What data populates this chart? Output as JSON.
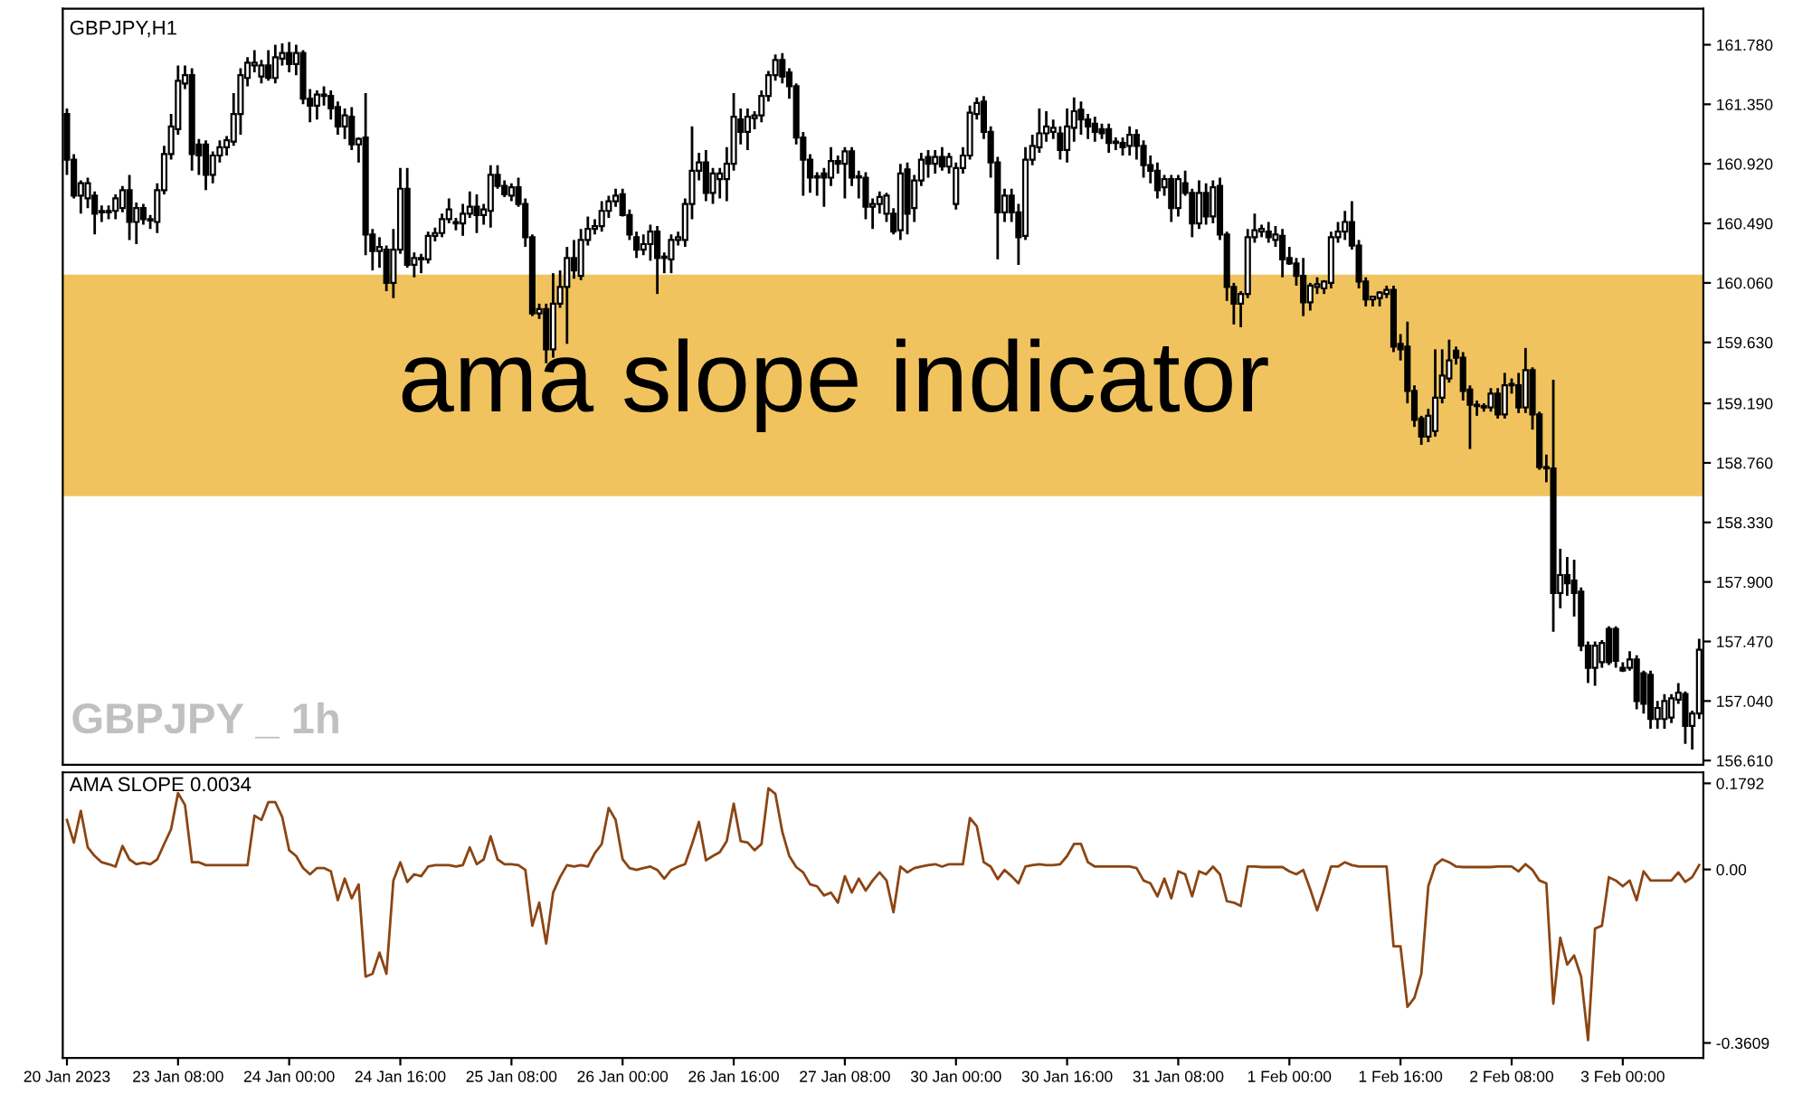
{
  "chart_data": [
    {
      "type": "candlestick",
      "title": "GBPJPY,H1",
      "color": "#000000",
      "tick_labels": "y",
      "annotations": [
        "GBPJPY _ 1h"
      ],
      "bands": [
        {
          "axis": "y",
          "from": 158.52,
          "to": 160.12,
          "label": "ama slope indicator",
          "color": "#f0c35e"
        }
      ],
      "ylim": [
        156.58,
        162.04
      ],
      "yticks": [
        {
          "value": 161.78,
          "label": "161.780"
        },
        {
          "value": 161.35,
          "label": "161.350"
        },
        {
          "value": 160.92,
          "label": "160.920"
        },
        {
          "value": 160.49,
          "label": "160.490"
        },
        {
          "value": 160.06,
          "label": "160.060"
        },
        {
          "value": 159.63,
          "label": "159.630"
        },
        {
          "value": 159.19,
          "label": "159.190"
        },
        {
          "value": 158.76,
          "label": "158.760"
        },
        {
          "value": 158.33,
          "label": "158.330"
        },
        {
          "value": 157.9,
          "label": "157.900"
        },
        {
          "value": 157.47,
          "label": "157.470"
        },
        {
          "value": 157.04,
          "label": "157.040"
        },
        {
          "value": 156.61,
          "label": "156.610"
        }
      ],
      "ohlc": [
        [
          161.28,
          161.32,
          160.84,
          160.95
        ],
        [
          160.95,
          160.99,
          160.67,
          160.69
        ],
        [
          160.69,
          160.8,
          160.56,
          160.78
        ],
        [
          160.67,
          160.82,
          160.6,
          160.78
        ],
        [
          160.69,
          160.72,
          160.41,
          160.56
        ],
        [
          160.57,
          160.62,
          160.5,
          160.58
        ],
        [
          160.58,
          160.62,
          160.52,
          160.57
        ],
        [
          160.58,
          160.7,
          160.52,
          160.67
        ],
        [
          160.6,
          160.76,
          160.57,
          160.73
        ],
        [
          160.73,
          160.84,
          160.37,
          160.5
        ],
        [
          160.5,
          160.64,
          160.34,
          160.6
        ],
        [
          160.6,
          160.63,
          160.48,
          160.52
        ],
        [
          160.52,
          160.55,
          160.45,
          160.51
        ],
        [
          160.5,
          160.78,
          160.42,
          160.73
        ],
        [
          160.73,
          161.05,
          160.7,
          160.99
        ],
        [
          160.99,
          161.28,
          160.95,
          161.19
        ],
        [
          161.17,
          161.63,
          161.13,
          161.52
        ],
        [
          161.5,
          161.63,
          161.46,
          161.56
        ],
        [
          161.56,
          161.61,
          160.87,
          160.99
        ],
        [
          161.06,
          161.1,
          160.84,
          160.98
        ],
        [
          161.06,
          161.09,
          160.73,
          160.84
        ],
        [
          160.84,
          161.01,
          160.78,
          160.98
        ],
        [
          160.98,
          161.09,
          160.93,
          161.04
        ],
        [
          161.04,
          161.12,
          160.98,
          161.09
        ],
        [
          161.08,
          161.43,
          161.05,
          161.28
        ],
        [
          161.28,
          161.61,
          161.13,
          161.56
        ],
        [
          161.54,
          161.69,
          161.48,
          161.65
        ],
        [
          161.63,
          161.74,
          161.58,
          161.65
        ],
        [
          161.55,
          161.67,
          161.5,
          161.63
        ],
        [
          161.63,
          161.74,
          161.52,
          161.54
        ],
        [
          161.54,
          161.78,
          161.5,
          161.69
        ],
        [
          161.68,
          161.79,
          161.63,
          161.72
        ],
        [
          161.72,
          161.8,
          161.58,
          161.64
        ],
        [
          161.64,
          161.78,
          161.56,
          161.72
        ],
        [
          161.72,
          161.74,
          161.35,
          161.39
        ],
        [
          161.39,
          161.46,
          161.22,
          161.34
        ],
        [
          161.34,
          161.45,
          161.24,
          161.42
        ],
        [
          161.42,
          161.48,
          161.34,
          161.41
        ],
        [
          161.41,
          161.45,
          161.24,
          161.32
        ],
        [
          161.33,
          161.37,
          161.13,
          161.19
        ],
        [
          161.19,
          161.32,
          161.1,
          161.27
        ],
        [
          161.26,
          161.33,
          161.02,
          161.06
        ],
        [
          161.06,
          161.11,
          160.93,
          161.1
        ],
        [
          161.11,
          161.43,
          160.26,
          160.41
        ],
        [
          160.41,
          160.45,
          160.15,
          160.29
        ],
        [
          160.29,
          160.39,
          160.17,
          160.32
        ],
        [
          160.3,
          160.33,
          160.0,
          160.06
        ],
        [
          160.06,
          160.45,
          159.95,
          160.3
        ],
        [
          160.3,
          160.89,
          160.27,
          160.74
        ],
        [
          160.74,
          160.89,
          160.17,
          160.19
        ],
        [
          160.19,
          160.28,
          160.1,
          160.24
        ],
        [
          160.24,
          160.27,
          160.13,
          160.23
        ],
        [
          160.23,
          160.43,
          160.2,
          160.4
        ],
        [
          160.4,
          160.46,
          160.36,
          160.42
        ],
        [
          160.42,
          160.56,
          160.39,
          160.52
        ],
        [
          160.52,
          160.67,
          160.49,
          160.59
        ],
        [
          160.5,
          160.53,
          160.44,
          160.49
        ],
        [
          160.49,
          160.63,
          160.4,
          160.56
        ],
        [
          160.56,
          160.72,
          160.53,
          160.61
        ],
        [
          160.61,
          160.7,
          160.42,
          160.55
        ],
        [
          160.55,
          160.63,
          160.48,
          160.59
        ],
        [
          160.58,
          160.91,
          160.46,
          160.84
        ],
        [
          160.84,
          160.91,
          160.74,
          160.76
        ],
        [
          160.76,
          160.8,
          160.68,
          160.7
        ],
        [
          160.69,
          160.78,
          160.65,
          160.75
        ],
        [
          160.75,
          160.82,
          160.61,
          160.63
        ],
        [
          160.63,
          160.67,
          160.32,
          160.39
        ],
        [
          160.39,
          160.41,
          159.82,
          159.84
        ],
        [
          159.84,
          159.91,
          159.8,
          159.87
        ],
        [
          159.87,
          159.91,
          159.48,
          159.58
        ],
        [
          159.58,
          160.13,
          159.52,
          159.91
        ],
        [
          159.91,
          160.15,
          159.88,
          160.03
        ],
        [
          160.03,
          160.32,
          159.62,
          160.24
        ],
        [
          160.24,
          160.37,
          160.09,
          160.15
        ],
        [
          160.11,
          160.45,
          160.08,
          160.37
        ],
        [
          160.37,
          160.54,
          160.33,
          160.45
        ],
        [
          160.45,
          160.52,
          160.41,
          160.47
        ],
        [
          160.47,
          160.65,
          160.43,
          160.58
        ],
        [
          160.58,
          160.69,
          160.53,
          160.65
        ],
        [
          160.65,
          160.74,
          160.61,
          160.69
        ],
        [
          160.7,
          160.74,
          160.54,
          160.55
        ],
        [
          160.55,
          160.59,
          160.37,
          160.41
        ],
        [
          160.39,
          160.43,
          160.24,
          160.3
        ],
        [
          160.3,
          160.41,
          160.26,
          160.34
        ],
        [
          160.34,
          160.48,
          160.22,
          160.43
        ],
        [
          160.43,
          160.47,
          159.98,
          160.24
        ],
        [
          160.24,
          160.28,
          160.13,
          160.25
        ],
        [
          160.23,
          160.41,
          160.13,
          160.37
        ],
        [
          160.37,
          160.43,
          160.33,
          160.39
        ],
        [
          160.37,
          160.67,
          160.32,
          160.63
        ],
        [
          160.63,
          161.19,
          160.52,
          160.87
        ],
        [
          160.87,
          161.0,
          160.8,
          160.93
        ],
        [
          160.93,
          161.02,
          160.65,
          160.71
        ],
        [
          160.71,
          160.89,
          160.63,
          160.85
        ],
        [
          160.81,
          160.89,
          160.67,
          160.85
        ],
        [
          160.81,
          161.04,
          160.65,
          160.92
        ],
        [
          160.92,
          161.43,
          160.87,
          161.26
        ],
        [
          161.24,
          161.32,
          161.06,
          161.15
        ],
        [
          161.15,
          161.32,
          161.02,
          161.26
        ],
        [
          161.25,
          161.3,
          161.17,
          161.27
        ],
        [
          161.27,
          161.45,
          161.22,
          161.41
        ],
        [
          161.41,
          161.59,
          161.37,
          161.56
        ],
        [
          161.56,
          161.71,
          161.52,
          161.67
        ],
        [
          161.67,
          161.72,
          161.5,
          161.55
        ],
        [
          161.58,
          161.61,
          161.39,
          161.48
        ],
        [
          161.48,
          161.5,
          161.06,
          161.11
        ],
        [
          161.11,
          161.15,
          160.69,
          160.95
        ],
        [
          160.95,
          160.99,
          160.71,
          160.82
        ],
        [
          160.82,
          160.86,
          160.69,
          160.83
        ],
        [
          160.85,
          160.89,
          160.61,
          160.82
        ],
        [
          160.82,
          161.04,
          160.76,
          160.94
        ],
        [
          160.94,
          160.98,
          160.85,
          160.92
        ],
        [
          160.92,
          161.04,
          160.67,
          161.01
        ],
        [
          161.01,
          161.04,
          160.76,
          160.82
        ],
        [
          160.82,
          160.87,
          160.67,
          160.83
        ],
        [
          160.82,
          160.86,
          160.52,
          160.61
        ],
        [
          160.61,
          160.67,
          160.45,
          160.63
        ],
        [
          160.63,
          160.72,
          160.56,
          160.68
        ],
        [
          160.56,
          160.71,
          160.5,
          160.69
        ],
        [
          160.56,
          160.6,
          160.41,
          160.43
        ],
        [
          160.44,
          160.92,
          160.37,
          160.85
        ],
        [
          160.88,
          160.93,
          160.41,
          160.56
        ],
        [
          160.6,
          160.84,
          160.5,
          160.8
        ],
        [
          160.8,
          161.0,
          160.76,
          160.95
        ],
        [
          160.97,
          161.02,
          160.82,
          160.92
        ],
        [
          160.92,
          161.02,
          160.85,
          160.97
        ],
        [
          160.97,
          161.04,
          160.87,
          160.9
        ],
        [
          160.9,
          161.0,
          160.85,
          160.97
        ],
        [
          160.63,
          160.93,
          160.59,
          160.89
        ],
        [
          160.89,
          161.04,
          160.85,
          160.98
        ],
        [
          160.98,
          161.34,
          160.95,
          161.29
        ],
        [
          161.28,
          161.4,
          161.24,
          161.36
        ],
        [
          161.37,
          161.41,
          161.1,
          161.15
        ],
        [
          161.15,
          161.19,
          160.82,
          160.93
        ],
        [
          160.93,
          160.97,
          160.23,
          160.57
        ],
        [
          160.57,
          160.74,
          160.5,
          160.69
        ],
        [
          160.69,
          160.74,
          160.5,
          160.57
        ],
        [
          160.57,
          160.63,
          160.19,
          160.39
        ],
        [
          160.4,
          161.04,
          160.37,
          160.95
        ],
        [
          160.95,
          161.13,
          160.91,
          161.05
        ],
        [
          161.04,
          161.32,
          161.0,
          161.14
        ],
        [
          161.14,
          161.3,
          161.08,
          161.19
        ],
        [
          161.15,
          161.24,
          161.1,
          161.18
        ],
        [
          161.14,
          161.19,
          160.95,
          161.02
        ],
        [
          161.02,
          161.32,
          160.93,
          161.19
        ],
        [
          161.18,
          161.4,
          161.08,
          161.3
        ],
        [
          161.31,
          161.37,
          161.13,
          161.24
        ],
        [
          161.24,
          161.28,
          161.1,
          161.19
        ],
        [
          161.21,
          161.26,
          161.08,
          161.15
        ],
        [
          161.17,
          161.21,
          161.1,
          161.14
        ],
        [
          161.17,
          161.21,
          161.0,
          161.07
        ],
        [
          161.07,
          161.11,
          161.02,
          161.08
        ],
        [
          161.07,
          161.11,
          160.98,
          161.04
        ],
        [
          161.05,
          161.19,
          160.98,
          161.13
        ],
        [
          161.13,
          161.17,
          160.95,
          161.05
        ],
        [
          161.05,
          161.09,
          160.82,
          160.91
        ],
        [
          160.91,
          160.98,
          160.78,
          160.87
        ],
        [
          160.87,
          160.93,
          160.67,
          160.73
        ],
        [
          160.75,
          160.84,
          160.69,
          160.81
        ],
        [
          160.81,
          160.84,
          160.5,
          160.6
        ],
        [
          160.6,
          160.84,
          160.54,
          160.81
        ],
        [
          160.78,
          160.87,
          160.69,
          160.71
        ],
        [
          160.71,
          160.74,
          160.39,
          160.49
        ],
        [
          160.49,
          160.8,
          160.45,
          160.71
        ],
        [
          160.71,
          160.78,
          160.48,
          160.54
        ],
        [
          160.54,
          160.8,
          160.49,
          160.75
        ],
        [
          160.76,
          160.82,
          160.37,
          160.41
        ],
        [
          160.41,
          160.43,
          159.93,
          160.03
        ],
        [
          160.03,
          160.06,
          159.76,
          159.91
        ],
        [
          159.91,
          160.0,
          159.74,
          159.98
        ],
        [
          159.98,
          160.45,
          159.95,
          160.39
        ],
        [
          160.39,
          160.56,
          160.35,
          160.44
        ],
        [
          160.43,
          160.48,
          160.39,
          160.45
        ],
        [
          160.43,
          160.5,
          160.35,
          160.39
        ],
        [
          160.37,
          160.47,
          160.32,
          160.41
        ],
        [
          160.4,
          160.45,
          160.1,
          160.23
        ],
        [
          160.24,
          160.32,
          160.19,
          160.2
        ],
        [
          160.2,
          160.24,
          160.04,
          160.11
        ],
        [
          160.11,
          160.24,
          159.82,
          159.92
        ],
        [
          159.92,
          160.06,
          159.86,
          160.04
        ],
        [
          160.03,
          160.1,
          159.98,
          160.05
        ],
        [
          160.02,
          160.08,
          159.98,
          160.07
        ],
        [
          160.06,
          160.43,
          160.02,
          160.39
        ],
        [
          160.39,
          160.5,
          160.35,
          160.43
        ],
        [
          160.43,
          160.58,
          160.37,
          160.5
        ],
        [
          160.5,
          160.65,
          160.3,
          160.33
        ],
        [
          160.33,
          160.37,
          160.02,
          160.07
        ],
        [
          160.07,
          160.1,
          159.89,
          159.94
        ],
        [
          159.94,
          159.96,
          159.89,
          159.96
        ],
        [
          159.95,
          160.0,
          159.89,
          159.99
        ],
        [
          159.98,
          160.04,
          159.95,
          160.01
        ],
        [
          160.01,
          160.04,
          159.56,
          159.6
        ],
        [
          159.62,
          159.69,
          159.5,
          159.58
        ],
        [
          159.6,
          159.78,
          159.19,
          159.28
        ],
        [
          159.28,
          159.32,
          159.02,
          159.07
        ],
        [
          159.08,
          159.1,
          158.89,
          158.95
        ],
        [
          158.95,
          159.15,
          158.91,
          159.1
        ],
        [
          158.99,
          159.58,
          158.95,
          159.23
        ],
        [
          159.23,
          159.58,
          159.19,
          159.39
        ],
        [
          159.37,
          159.65,
          159.34,
          159.5
        ],
        [
          159.57,
          159.6,
          159.47,
          159.52
        ],
        [
          159.52,
          159.56,
          159.21,
          159.28
        ],
        [
          159.29,
          159.32,
          158.86,
          159.18
        ],
        [
          159.18,
          159.21,
          159.1,
          159.17
        ],
        [
          159.17,
          159.19,
          159.13,
          159.16
        ],
        [
          159.16,
          159.3,
          159.13,
          159.26
        ],
        [
          159.26,
          159.3,
          159.08,
          159.11
        ],
        [
          159.11,
          159.41,
          159.08,
          159.32
        ],
        [
          159.32,
          159.37,
          159.26,
          159.33
        ],
        [
          159.32,
          159.41,
          159.12,
          159.16
        ],
        [
          159.16,
          159.59,
          159.12,
          159.43
        ],
        [
          159.43,
          159.45,
          159.0,
          159.11
        ],
        [
          159.11,
          159.13,
          158.71,
          158.73
        ],
        [
          158.73,
          158.82,
          158.62,
          158.72
        ],
        [
          158.72,
          159.36,
          157.54,
          157.82
        ],
        [
          157.82,
          158.14,
          157.71,
          157.95
        ],
        [
          157.95,
          158.08,
          157.8,
          157.89
        ],
        [
          157.91,
          158.06,
          157.65,
          157.82
        ],
        [
          157.83,
          157.86,
          157.4,
          157.44
        ],
        [
          157.44,
          157.47,
          157.17,
          157.28
        ],
        [
          157.28,
          157.47,
          157.15,
          157.44
        ],
        [
          157.32,
          157.48,
          157.28,
          157.46
        ],
        [
          157.56,
          157.58,
          157.3,
          157.32
        ],
        [
          157.56,
          157.58,
          157.28,
          157.33
        ],
        [
          157.28,
          157.32,
          157.25,
          157.26
        ],
        [
          157.28,
          157.4,
          157.26,
          157.34
        ],
        [
          157.34,
          157.37,
          156.98,
          157.04
        ],
        [
          157.24,
          157.26,
          156.95,
          157.02
        ],
        [
          157.23,
          157.26,
          156.84,
          156.91
        ],
        [
          156.91,
          157.04,
          156.84,
          156.99
        ],
        [
          156.91,
          157.09,
          156.84,
          157.04
        ],
        [
          156.92,
          157.09,
          156.88,
          157.06
        ],
        [
          157.05,
          157.17,
          157.02,
          157.1
        ],
        [
          157.09,
          157.11,
          156.73,
          156.86
        ],
        [
          156.86,
          156.97,
          156.69,
          156.95
        ],
        [
          156.95,
          157.49,
          156.91,
          157.41
        ]
      ]
    },
    {
      "type": "line",
      "title": "AMA SLOPE 0.0034",
      "color": "#8b4513",
      "ylim": [
        -0.392,
        0.202
      ],
      "yticks": [
        0.1792,
        {
          "value": 0,
          "label": "0.00"
        },
        -0.3609
      ],
      "categories": [
        "20 Jan 2023",
        null,
        null,
        null,
        null,
        null,
        null,
        null,
        null,
        null,
        null,
        null,
        null,
        null,
        null,
        null,
        "23 Jan 08:00",
        null,
        null,
        null,
        null,
        null,
        null,
        null,
        null,
        null,
        null,
        null,
        null,
        null,
        null,
        null,
        "24 Jan 00:00",
        null,
        null,
        null,
        null,
        null,
        null,
        null,
        null,
        null,
        null,
        null,
        null,
        null,
        null,
        null,
        "24 Jan 16:00",
        null,
        null,
        null,
        null,
        null,
        null,
        null,
        null,
        null,
        null,
        null,
        null,
        null,
        null,
        null,
        "25 Jan 08:00",
        null,
        null,
        null,
        null,
        null,
        null,
        null,
        null,
        null,
        null,
        null,
        null,
        null,
        null,
        null,
        "26 Jan 00:00",
        null,
        null,
        null,
        null,
        null,
        null,
        null,
        null,
        null,
        null,
        null,
        null,
        null,
        null,
        null,
        "26 Jan 16:00",
        null,
        null,
        null,
        null,
        null,
        null,
        null,
        null,
        null,
        null,
        null,
        null,
        null,
        null,
        null,
        "27 Jan 08:00",
        null,
        null,
        null,
        null,
        null,
        null,
        null,
        null,
        null,
        null,
        null,
        null,
        null,
        null,
        null,
        "30 Jan 00:00",
        null,
        null,
        null,
        null,
        null,
        null,
        null,
        null,
        null,
        null,
        null,
        null,
        null,
        null,
        null,
        "30 Jan 16:00",
        null,
        null,
        null,
        null,
        null,
        null,
        null,
        null,
        null,
        null,
        null,
        null,
        null,
        null,
        null,
        "31 Jan 08:00",
        null,
        null,
        null,
        null,
        null,
        null,
        null,
        null,
        null,
        null,
        null,
        null,
        null,
        null,
        null,
        "1 Feb 00:00",
        null,
        null,
        null,
        null,
        null,
        null,
        null,
        null,
        null,
        null,
        null,
        null,
        null,
        null,
        null,
        "1 Feb 16:00",
        null,
        null,
        null,
        null,
        null,
        null,
        null,
        null,
        null,
        null,
        null,
        null,
        null,
        null,
        null,
        "2 Feb 08:00",
        null,
        null,
        null,
        null,
        null,
        null,
        null,
        null,
        null,
        null,
        null,
        null,
        null,
        null,
        null,
        "3 Feb 00:00",
        null,
        null,
        null,
        null,
        null,
        null,
        null,
        null,
        null,
        null,
        null
      ],
      "values": [
        0.103,
        0.056,
        0.122,
        0.046,
        0.028,
        0.015,
        0.011,
        0.006,
        0.049,
        0.021,
        0.011,
        0.014,
        0.011,
        0.021,
        0.053,
        0.084,
        0.159,
        0.134,
        0.015,
        0.015,
        0.009,
        0.009,
        0.009,
        0.009,
        0.009,
        0.009,
        0.009,
        0.112,
        0.103,
        0.14,
        0.14,
        0.109,
        0.04,
        0.028,
        0.003,
        -0.01,
        0.003,
        0.003,
        -0.004,
        -0.064,
        -0.019,
        -0.06,
        -0.031,
        -0.223,
        -0.217,
        -0.173,
        -0.217,
        -0.023,
        0.015,
        -0.026,
        -0.01,
        -0.014,
        0.006,
        0.009,
        0.009,
        0.009,
        0.006,
        0.009,
        0.046,
        0.011,
        0.021,
        0.069,
        0.021,
        0.011,
        0.011,
        0.009,
        -0.001,
        -0.117,
        -0.069,
        -0.154,
        -0.048,
        -0.016,
        0.009,
        0.006,
        0.009,
        0.006,
        0.034,
        0.053,
        0.128,
        0.103,
        0.021,
        0.003,
        -0.001,
        0.003,
        0.006,
        -0.001,
        -0.019,
        -0.001,
        0.006,
        0.011,
        0.053,
        0.099,
        0.019,
        0.028,
        0.036,
        0.059,
        0.137,
        0.059,
        0.056,
        0.04,
        0.053,
        0.169,
        0.157,
        0.078,
        0.028,
        0.005,
        -0.006,
        -0.031,
        -0.035,
        -0.054,
        -0.048,
        -0.069,
        -0.014,
        -0.048,
        -0.019,
        -0.044,
        -0.023,
        -0.006,
        -0.023,
        -0.089,
        0.006,
        -0.006,
        0.003,
        0.006,
        0.009,
        0.011,
        0.006,
        0.011,
        0.011,
        0.011,
        0.107,
        0.09,
        0.015,
        0.006,
        -0.02,
        -0.001,
        -0.014,
        -0.029,
        0.006,
        0.009,
        0.011,
        0.009,
        0.009,
        0.011,
        0.028,
        0.053,
        0.053,
        0.015,
        0.006,
        0.006,
        0.006,
        0.006,
        0.006,
        0.006,
        0.003,
        -0.023,
        -0.029,
        -0.056,
        -0.019,
        -0.06,
        -0.004,
        -0.01,
        -0.056,
        -0.004,
        -0.01,
        0.006,
        -0.01,
        -0.066,
        -0.069,
        -0.076,
        0.006,
        0.006,
        0.005,
        0.005,
        0.005,
        0.005,
        -0.004,
        -0.01,
        -0.001,
        -0.041,
        -0.085,
        -0.041,
        0.006,
        0.006,
        0.015,
        0.009,
        0.006,
        0.006,
        0.006,
        0.006,
        0.006,
        -0.16,
        -0.16,
        -0.286,
        -0.267,
        -0.217,
        -0.035,
        0.009,
        0.021,
        0.015,
        0.006,
        0.005,
        0.005,
        0.005,
        0.005,
        0.005,
        0.006,
        0.006,
        0.006,
        -0.004,
        0.011,
        -0.001,
        -0.023,
        -0.029,
        -0.279,
        -0.142,
        -0.198,
        -0.179,
        -0.223,
        -0.355,
        -0.123,
        -0.117,
        -0.016,
        -0.023,
        -0.035,
        -0.023,
        -0.064,
        -0.004,
        -0.023,
        -0.023,
        -0.023,
        -0.023,
        -0.006,
        -0.026,
        -0.016,
        0.009
      ]
    }
  ]
}
